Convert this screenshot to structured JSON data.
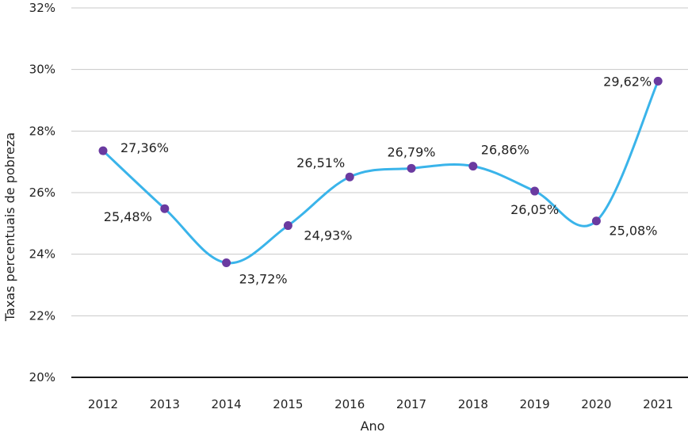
{
  "chart_data": {
    "type": "line",
    "title": "",
    "xlabel": "Ano",
    "ylabel": "Taxas percentuais de pobreza",
    "categories": [
      "2012",
      "2013",
      "2014",
      "2015",
      "2016",
      "2017",
      "2018",
      "2019",
      "2020",
      "2021"
    ],
    "values": [
      27.36,
      25.48,
      23.72,
      24.93,
      26.51,
      26.79,
      26.86,
      26.05,
      25.08,
      29.62
    ],
    "data_labels": [
      "27,36%",
      "25,48%",
      "23,72%",
      "24,93%",
      "26,51%",
      "26,79%",
      "26,86%",
      "26,05%",
      "25,08%",
      "29,62%"
    ],
    "ylim": [
      20,
      32
    ],
    "yticks": [
      20,
      22,
      24,
      26,
      28,
      30,
      32
    ],
    "ytick_labels": [
      "20%",
      "22%",
      "24%",
      "26%",
      "28%",
      "30%",
      "32%"
    ],
    "grid": true,
    "line_color": "#3ab4ea",
    "marker_color": "#6a3aa0"
  }
}
